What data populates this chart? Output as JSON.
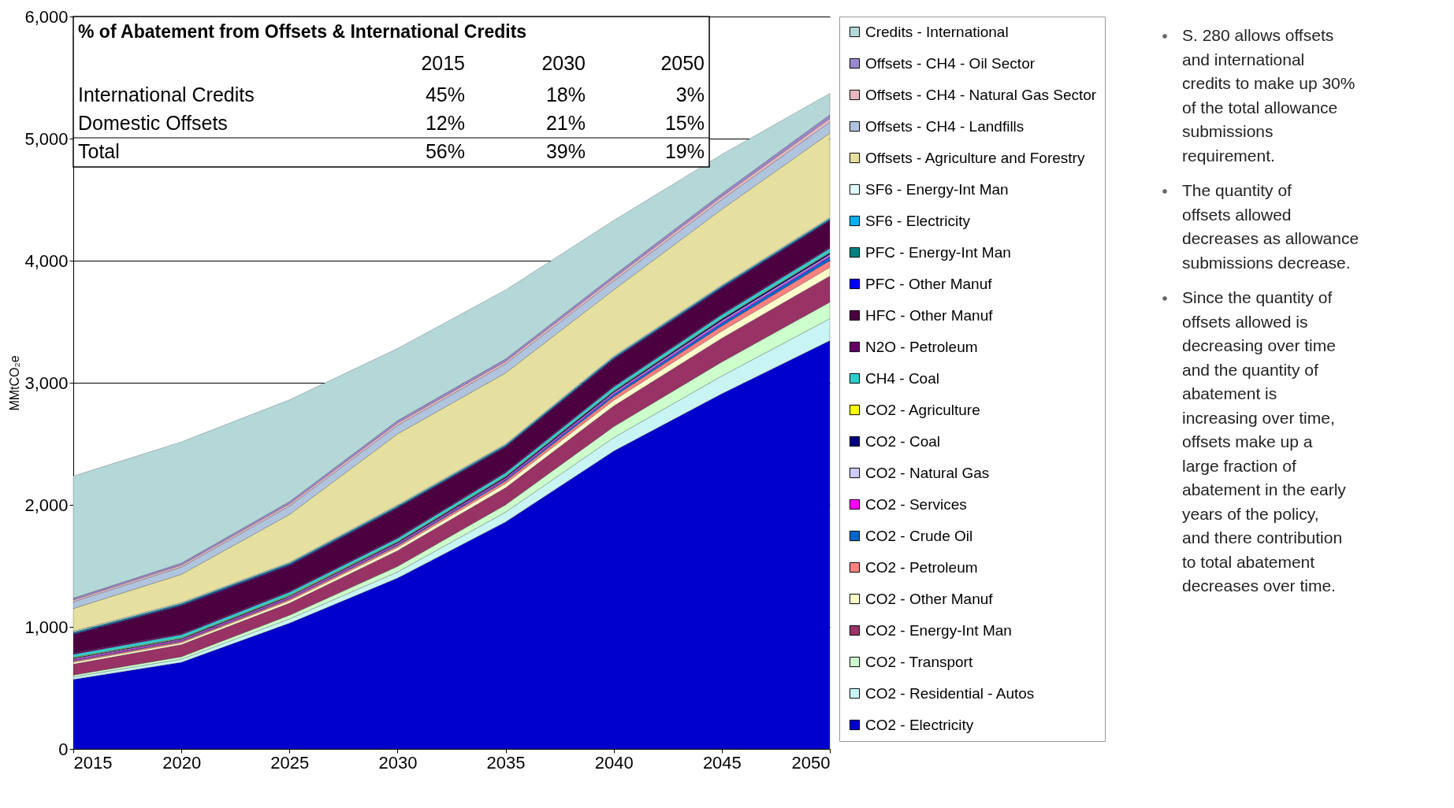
{
  "chart_data": {
    "type": "area",
    "stacked": true,
    "ylabel": "MMtCO₂e",
    "x": [
      2015,
      2020,
      2025,
      2030,
      2035,
      2040,
      2045,
      2050
    ],
    "xlim": [
      2015,
      2050
    ],
    "xticks": [
      2015,
      2020,
      2025,
      2030,
      2035,
      2040,
      2045,
      2050
    ],
    "ylim": [
      0,
      6000
    ],
    "yticks": [
      {
        "value": 0,
        "label": "0"
      },
      {
        "value": 1000,
        "label": "1,000"
      },
      {
        "value": 2000,
        "label": "2,000"
      },
      {
        "value": 3000,
        "label": "3,000"
      },
      {
        "value": 4000,
        "label": "4,000"
      },
      {
        "value": 5000,
        "label": "5,000"
      },
      {
        "value": 6000,
        "label": "6,000"
      }
    ],
    "grid": "y",
    "legend": "right",
    "series": [
      {
        "name": "CO2 - Electricity",
        "color": "#0000cc",
        "values": [
          570,
          710,
          1030,
          1400,
          1860,
          2440,
          2910,
          3345
        ]
      },
      {
        "name": "CO2 - Residential - Autos",
        "color": "#c8f4f4",
        "values": [
          20,
          25,
          35,
          50,
          80,
          110,
          145,
          180
        ]
      },
      {
        "name": "CO2 - Transport",
        "color": "#ccffcc",
        "values": [
          15,
          20,
          30,
          45,
          60,
          90,
          115,
          135
        ]
      },
      {
        "name": "CO2 - Energy-Int Man",
        "color": "#993366",
        "values": [
          90,
          100,
          100,
          130,
          140,
          170,
          195,
          215
        ]
      },
      {
        "name": "CO2 - Other Manuf",
        "color": "#ffffcc",
        "values": [
          15,
          15,
          20,
          25,
          35,
          45,
          58,
          70
        ]
      },
      {
        "name": "CO2 - Petroleum",
        "color": "#ff8080",
        "values": [
          10,
          10,
          12,
          15,
          20,
          30,
          42,
          55
        ]
      },
      {
        "name": "CO2 - Crude Oil",
        "color": "#0066cc",
        "values": [
          5,
          5,
          6,
          8,
          10,
          18,
          24,
          30
        ]
      },
      {
        "name": "CO2 - Services",
        "color": "#ff00ff",
        "values": [
          8,
          8,
          8,
          8,
          9,
          9,
          10,
          10
        ]
      },
      {
        "name": "CO2 - Natural Gas",
        "color": "#ccccff",
        "values": [
          5,
          5,
          5,
          5,
          6,
          7,
          9,
          10
        ]
      },
      {
        "name": "CO2 - Coal",
        "color": "#000080",
        "values": [
          7,
          7,
          8,
          9,
          10,
          12,
          14,
          15
        ]
      },
      {
        "name": "CO2 - Agriculture",
        "color": "#ffff00",
        "values": [
          5,
          5,
          5,
          5,
          5,
          5,
          5,
          5
        ]
      },
      {
        "name": "CH4 - Coal",
        "color": "#33cccc",
        "values": [
          25,
          25,
          25,
          25,
          27,
          28,
          29,
          30
        ]
      },
      {
        "name": "N2O - Petroleum",
        "color": "#660066",
        "values": [
          10,
          10,
          10,
          10,
          10,
          10,
          10,
          10
        ]
      },
      {
        "name": "HFC - Other Manuf",
        "color": "#4b0040",
        "values": [
          154,
          229,
          210,
          239,
          202,
          220,
          209,
          219
        ]
      },
      {
        "name": "PFC - Other Manuf",
        "color": "#0000ff",
        "values": [
          5,
          5,
          5,
          5,
          5,
          5,
          5,
          5
        ]
      },
      {
        "name": "PFC - Energy-Int Man",
        "color": "#008080",
        "values": [
          8,
          8,
          8,
          8,
          8,
          8,
          8,
          8
        ]
      },
      {
        "name": "SF6 - Electricity",
        "color": "#00b0f0",
        "values": [
          5,
          5,
          5,
          5,
          5,
          5,
          5,
          5
        ]
      },
      {
        "name": "SF6 - Energy-Int Man",
        "color": "#e0ffff",
        "values": [
          8,
          8,
          8,
          8,
          8,
          8,
          8,
          8
        ]
      },
      {
        "name": "Offsets - Agriculture and Forestry",
        "color": "#e6e0a0",
        "values": [
          185,
          230,
          390,
          580,
          580,
          540,
          619,
          690
        ]
      },
      {
        "name": "Offsets - CH4 - Landfills",
        "color": "#b0c4de",
        "values": [
          55,
          60,
          70,
          70,
          75,
          75,
          80,
          90
        ]
      },
      {
        "name": "Offsets - CH4 - Natural Gas Sector",
        "color": "#e6b8c0",
        "values": [
          15,
          16,
          18,
          20,
          20,
          22,
          25,
          30
        ]
      },
      {
        "name": "Offsets - CH4 - Oil Sector",
        "color": "#9a88cc",
        "values": [
          15,
          16,
          18,
          20,
          20,
          22,
          25,
          30
        ]
      },
      {
        "name": "Credits - International",
        "color": "#b4d8d8",
        "values": [
          1000,
          993,
          834,
          590,
          565,
          450,
          320,
          175
        ]
      }
    ],
    "annotations": [
      "% of Abatement from Offsets & International Credits",
      "\t2015\t2030\t2050",
      "International Credits\t45%\t18%\t3%",
      "Domestic Offsets\t12%\t21%\t15%",
      "Total\t56%\t39%\t19%",
      "S. 280 allows offsets and international credits to make up 30% of the total allowance submissions requirement.",
      "The quantity of offsets allowed decreases as allowance submissions decrease.",
      "Since the quantity of offsets allowed is decreasing over time and the quantity of abatement is increasing over time, offsets make up a large fraction of abatement in the early years of the policy, and there contribution to total abatement decreases over time."
    ]
  }
}
